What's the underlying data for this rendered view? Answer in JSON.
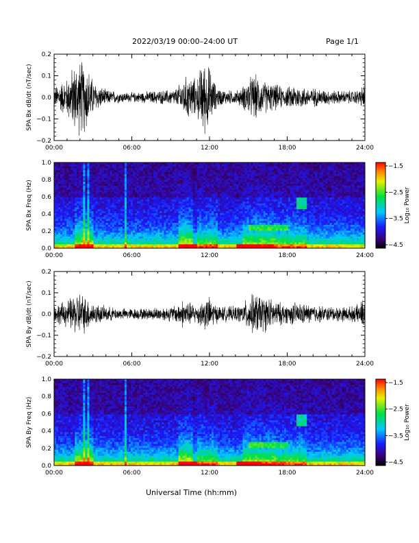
{
  "header": {
    "title": "2022/03/19  00:00–24:00 UT",
    "page": "Page 1/1"
  },
  "footer": {
    "xlabel": "Universal Time (hh:mm)"
  },
  "chart_data": [
    {
      "type": "line",
      "ylabel": "SPA Bx dB/dt (nT/sec)",
      "ylim": [
        -0.2,
        0.2
      ],
      "yticks": [
        "0.2",
        "0.1",
        "0.0",
        "−0.1",
        "−0.2"
      ],
      "xticks": [
        "00:00",
        "06:00",
        "12:00",
        "18:00",
        "24:00"
      ],
      "xlim_hours": [
        0,
        24
      ],
      "color": "#000000",
      "envelope_hours": [
        0,
        0.5,
        1,
        1.5,
        2,
        2.5,
        3,
        3.5,
        4,
        5,
        6,
        7,
        8,
        9,
        9.5,
        10,
        10.5,
        11,
        11.5,
        12,
        12.5,
        13,
        14,
        14.5,
        15,
        15.5,
        16,
        16.5,
        17,
        17.5,
        18,
        18.5,
        19,
        19.5,
        20,
        21,
        22,
        23,
        23.5,
        24
      ],
      "envelope_amplitude": [
        0.05,
        0.08,
        0.1,
        0.17,
        0.2,
        0.18,
        0.09,
        0.06,
        0.04,
        0.03,
        0.025,
        0.03,
        0.035,
        0.04,
        0.05,
        0.1,
        0.12,
        0.09,
        0.2,
        0.16,
        0.06,
        0.04,
        0.035,
        0.05,
        0.1,
        0.12,
        0.09,
        0.08,
        0.07,
        0.06,
        0.05,
        0.07,
        0.06,
        0.05,
        0.05,
        0.04,
        0.035,
        0.035,
        0.04,
        0.07
      ]
    },
    {
      "type": "heatmap",
      "ylabel": "SPA Bx Freq (Hz)",
      "ylim": [
        0.0,
        1.0
      ],
      "yticks": [
        "1.0",
        "0.8",
        "0.6",
        "0.4",
        "0.2",
        "0.0"
      ],
      "xticks": [
        "00:00",
        "06:00",
        "12:00",
        "18:00",
        "24:00"
      ],
      "colorbar_label": "Log₁₀ Power",
      "colorbar_ticks": [
        "−1.5",
        "−2.5",
        "−3.5",
        "−4.5"
      ],
      "colorbar_range": [
        -4.5,
        -1.5
      ]
    },
    {
      "type": "line",
      "ylabel": "SPA By dB/dt (nT/sec)",
      "ylim": [
        -0.2,
        0.2
      ],
      "yticks": [
        "0.2",
        "0.1",
        "0.0",
        "−0.1",
        "−0.2"
      ],
      "xticks": [
        "00:00",
        "06:00",
        "12:00",
        "18:00",
        "24:00"
      ],
      "xlim_hours": [
        0,
        24
      ],
      "color": "#000000",
      "envelope_hours": [
        0,
        0.5,
        1,
        1.5,
        2,
        2.5,
        3,
        3.5,
        4,
        5,
        6,
        7,
        8,
        9,
        9.5,
        10,
        10.5,
        11,
        11.5,
        12,
        12.5,
        13,
        14,
        14.5,
        15,
        15.5,
        16,
        16.5,
        17,
        17.5,
        18,
        18.5,
        19,
        19.5,
        20,
        21,
        22,
        23,
        23.5,
        24
      ],
      "envelope_amplitude": [
        0.05,
        0.06,
        0.07,
        0.1,
        0.12,
        0.09,
        0.06,
        0.05,
        0.04,
        0.03,
        0.03,
        0.03,
        0.035,
        0.04,
        0.05,
        0.08,
        0.06,
        0.05,
        0.08,
        0.09,
        0.05,
        0.04,
        0.04,
        0.05,
        0.09,
        0.11,
        0.1,
        0.09,
        0.07,
        0.06,
        0.05,
        0.06,
        0.06,
        0.05,
        0.05,
        0.04,
        0.04,
        0.04,
        0.05,
        0.09
      ]
    },
    {
      "type": "heatmap",
      "ylabel": "SPA By Freq (Hz)",
      "ylim": [
        0.0,
        1.0
      ],
      "yticks": [
        "1.0",
        "0.8",
        "0.6",
        "0.4",
        "0.2",
        "0.0"
      ],
      "xticks": [
        "00:00",
        "06:00",
        "12:00",
        "18:00",
        "24:00"
      ],
      "colorbar_label": "Log₁₀ Power",
      "colorbar_ticks": [
        "−1.5",
        "−2.5",
        "−3.5",
        "−4.5"
      ],
      "colorbar_range": [
        -4.5,
        -1.5
      ]
    }
  ]
}
